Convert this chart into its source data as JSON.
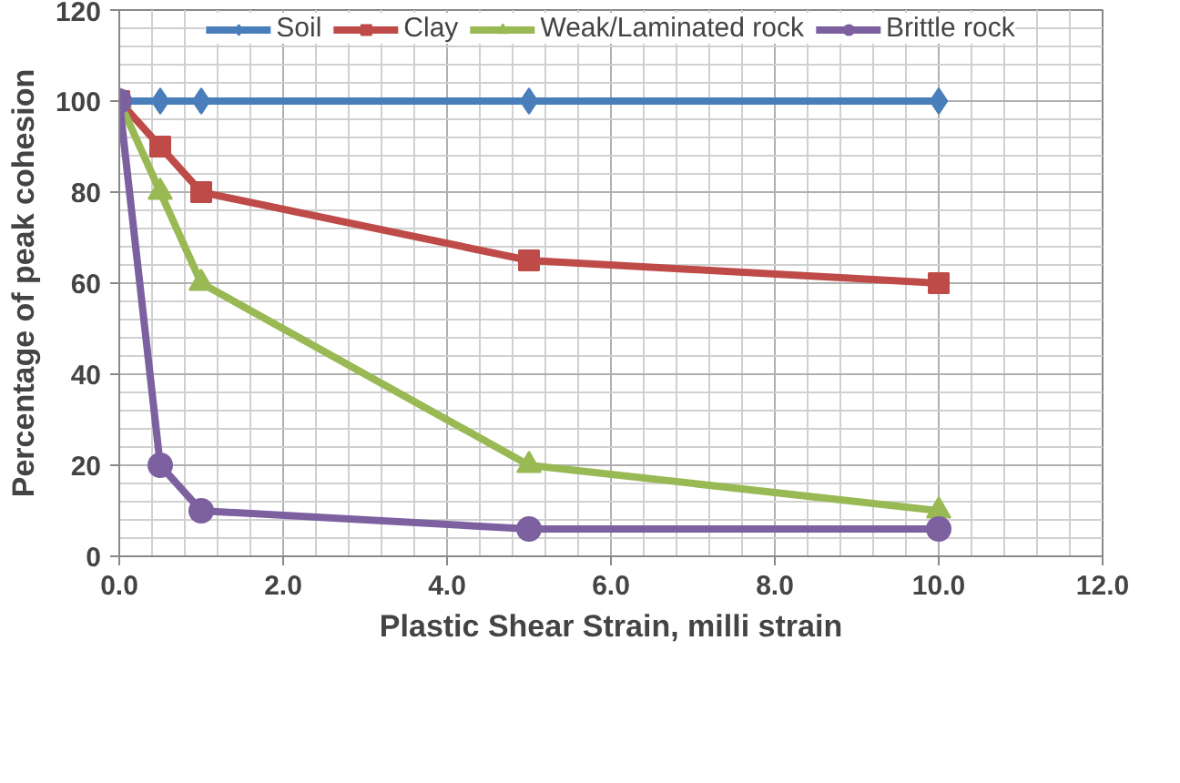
{
  "chart_data": {
    "type": "line",
    "xlabel": "Plastic Shear Strain, milli strain",
    "ylabel": "Percentage of peak cohesion",
    "x": [
      0,
      0.5,
      1,
      5,
      10
    ],
    "series": [
      {
        "name": "Soil",
        "color": "#4a7ebb",
        "marker": "diamond",
        "values": [
          100,
          100,
          100,
          100,
          100
        ]
      },
      {
        "name": "Clay",
        "color": "#be4b48",
        "marker": "square",
        "values": [
          100,
          90,
          80,
          65,
          60
        ]
      },
      {
        "name": "Weak/Laminated rock",
        "color": "#98b954",
        "marker": "triangle",
        "values": [
          100,
          80,
          60,
          20,
          10
        ]
      },
      {
        "name": "Brittle rock",
        "color": "#7d60a0",
        "marker": "circle",
        "values": [
          100,
          20,
          10,
          6,
          6
        ]
      }
    ],
    "xlim": [
      0,
      12
    ],
    "xticks": [
      {
        "value": 0,
        "label": "0.0"
      },
      {
        "value": 2,
        "label": "2.0"
      },
      {
        "value": 4,
        "label": "4.0"
      },
      {
        "value": 6,
        "label": "6.0"
      },
      {
        "value": 8,
        "label": "8.0"
      },
      {
        "value": 10,
        "label": "10.0"
      },
      {
        "value": 12,
        "label": "12.0"
      }
    ],
    "ylim": [
      0,
      120
    ],
    "yticks": [
      0,
      20,
      40,
      60,
      80,
      100,
      120
    ],
    "grid": true,
    "legend": "top",
    "line_style": "solid"
  }
}
